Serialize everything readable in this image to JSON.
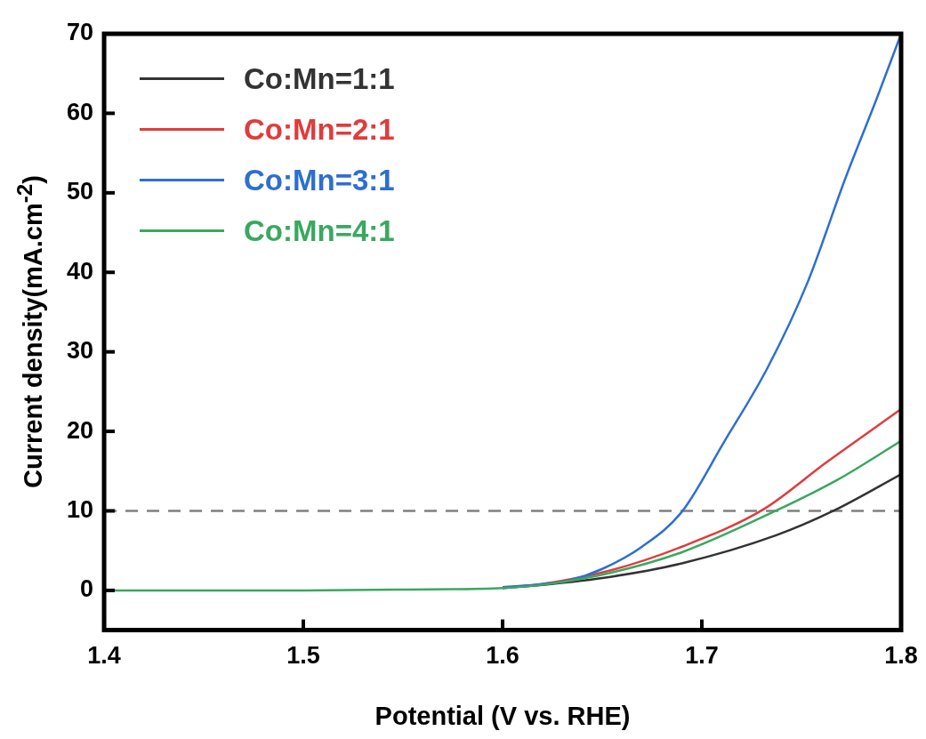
{
  "chart_data": {
    "type": "line",
    "xlabel": "Potential (V vs. RHE)",
    "ylabel": "Current density(mA.cm$^{-2}$)",
    "xlim": [
      1.4,
      1.8
    ],
    "ylim": [
      -5,
      70
    ],
    "xticks": [
      1.4,
      1.5,
      1.6,
      1.7,
      1.8
    ],
    "yticks": [
      0,
      10,
      20,
      30,
      40,
      50,
      60,
      70
    ],
    "grid": false,
    "legend": "top left",
    "marker": "none",
    "line_style": "solid",
    "ref_lines": [
      {
        "axis": "y",
        "value": 10,
        "color": "#808080",
        "line_style": "dashed"
      }
    ],
    "series": [
      {
        "name": "Co:Mn=1:1",
        "color": "#333333",
        "x": [
          1.6,
          1.62,
          1.654,
          1.69,
          1.737,
          1.766,
          1.8
        ],
        "values": [
          0.3,
          0.7,
          1.7,
          3.4,
          6.9,
          10,
          14.6
        ]
      },
      {
        "name": "Co:Mn=2:1",
        "color": "#e03c3c",
        "x": [
          1.6,
          1.62,
          1.654,
          1.69,
          1.731,
          1.762,
          1.8
        ],
        "values": [
          0.3,
          0.8,
          2.5,
          5.5,
          10.2,
          16,
          22.8
        ]
      },
      {
        "name": "Co:Mn=3:1",
        "color": "#2e6fd0",
        "x": [
          1.6,
          1.62,
          1.634,
          1.65,
          1.67,
          1.69,
          1.711,
          1.733,
          1.753,
          1.772,
          1.788,
          1.8
        ],
        "values": [
          0.4,
          0.8,
          1.3,
          2.7,
          5.5,
          9.9,
          18.6,
          28,
          38.7,
          51.8,
          62,
          70
        ]
      },
      {
        "name": "Co:Mn=4:1",
        "color": "#3aa860",
        "x": [
          1.4,
          1.5,
          1.55,
          1.6,
          1.62,
          1.654,
          1.69,
          1.737,
          1.768,
          1.8
        ],
        "values": [
          0,
          0,
          0.1,
          0.3,
          0.7,
          2.2,
          4.8,
          10,
          13.9,
          18.8
        ]
      }
    ]
  }
}
